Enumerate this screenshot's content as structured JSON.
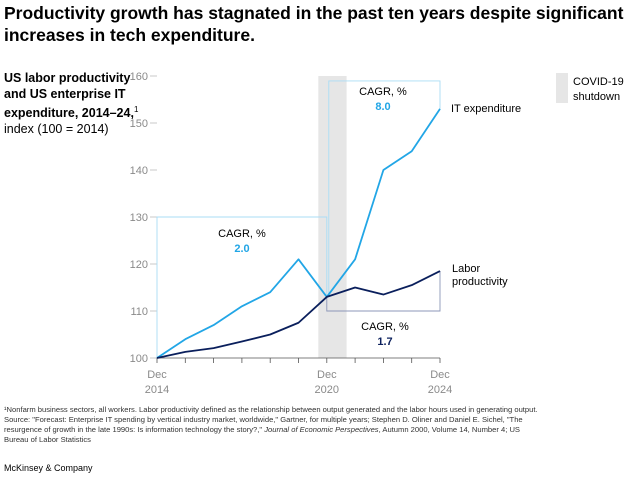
{
  "headline": "Productivity growth has stagnated in the past ten years despite significant increases in tech expenditure.",
  "side_title": {
    "bold": "US labor productivity and US enterprise IT expenditure, 2014–24,",
    "sup": "1",
    "normal": "index (100 = 2014)"
  },
  "chart_data": {
    "type": "line",
    "ylim": [
      100,
      160
    ],
    "xlim": [
      2014,
      2024
    ],
    "y_ticks": [
      "100",
      "110",
      "120",
      "130",
      "140",
      "150",
      "160"
    ],
    "x_ticks": [
      {
        "x": 2014,
        "line1": "Dec",
        "line2": "2014"
      },
      {
        "x": 2020,
        "line1": "Dec",
        "line2": "2020"
      },
      {
        "x": 2024,
        "line1": "Dec",
        "line2": "2024"
      }
    ],
    "series": [
      {
        "name": "IT expenditure",
        "color": "#22a6e6",
        "label_lines": [
          "IT expenditure"
        ],
        "points": [
          [
            2014,
            100
          ],
          [
            2015,
            104
          ],
          [
            2016,
            107
          ],
          [
            2017,
            111
          ],
          [
            2018,
            114
          ],
          [
            2019,
            121
          ],
          [
            2020,
            113
          ],
          [
            2021,
            121
          ],
          [
            2022,
            140
          ],
          [
            2023,
            144
          ],
          [
            2024,
            153
          ]
        ]
      },
      {
        "name": "Labor productivity",
        "color": "#0a1f5c",
        "label_lines": [
          "Labor",
          "productivity"
        ],
        "points": [
          [
            2014,
            100
          ],
          [
            2015,
            101.3
          ],
          [
            2016,
            102.1
          ],
          [
            2017,
            103.5
          ],
          [
            2018,
            105
          ],
          [
            2019,
            107.5
          ],
          [
            2020,
            113
          ],
          [
            2021,
            115
          ],
          [
            2022,
            113.5
          ],
          [
            2023,
            115.5
          ],
          [
            2024,
            118.5
          ]
        ]
      }
    ],
    "covid_band": {
      "from": 2019.7,
      "to": 2020.7,
      "label_lines": [
        "COVID-19",
        "shutdown"
      ],
      "color": "#e6e6e6"
    },
    "annotations": [
      {
        "title": "CAGR, %",
        "value": "8.0",
        "color": "#22a6e6"
      },
      {
        "title": "CAGR, %",
        "value": "2.0",
        "color": "#22a6e6"
      },
      {
        "title": "CAGR, %",
        "value": "1.7",
        "color": "#0a1f5c"
      }
    ]
  },
  "footnote": {
    "line1": "¹Nonfarm business sectors, all workers. Labor productivity defined as the relationship between output generated and the labor hours used in generating output.",
    "line2": "Source: \"Forecast: Enterprise IT spending by vertical industry market, worldwide,\" Gartner, for multiple years; Stephen D. Oliner and Daniel E. Sichel, \"The",
    "line3a": "resurgence of growth in the late 1990s: Is information technology the story?,\"",
    "line3b_italic": "Journal of Economic Perspectives",
    "line3c": ", Autumn 2000, Volume 14, Number 4; US",
    "line4": "Bureau of Labor Statistics"
  },
  "brand": "McKinsey & Company"
}
